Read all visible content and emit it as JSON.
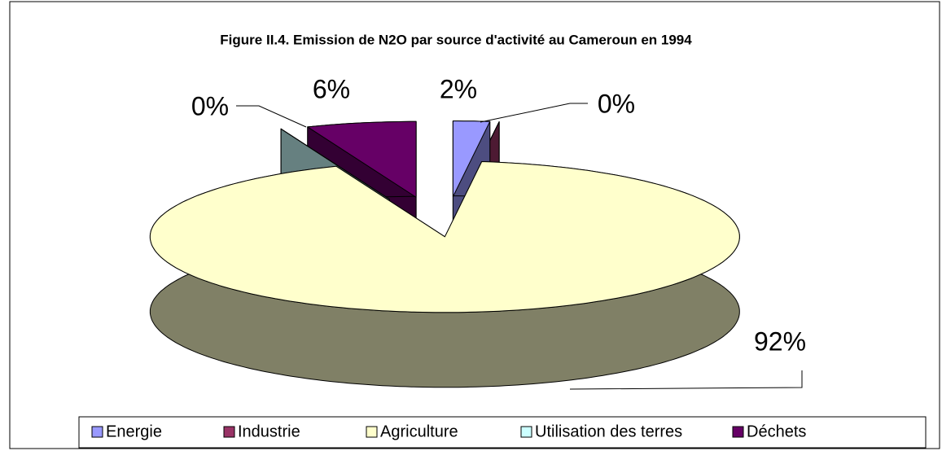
{
  "chart_data": {
    "type": "pie",
    "title": "Figure II.4. Emission de N2O par source d'activité au Cameroun en 1994",
    "categories": [
      "Energie",
      "Industrie",
      "Agriculture",
      "Utilisation des terres",
      "Déchets"
    ],
    "values": [
      2,
      0,
      92,
      0,
      6
    ],
    "value_labels": [
      "2%",
      "0%",
      "92%",
      "0%",
      "6%"
    ],
    "colors": [
      "#9999ff",
      "#993366",
      "#ffffcc",
      "#ccffff",
      "#660066"
    ],
    "legend": "bottom"
  }
}
